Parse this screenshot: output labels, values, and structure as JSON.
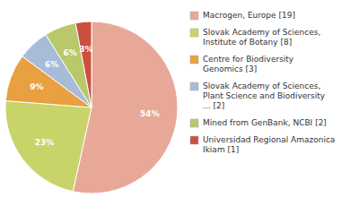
{
  "chart_data": {
    "type": "pie",
    "categories": [
      "Macrogen, Europe [19]",
      "Slovak Academy of Sciences,\nInstitute of Botany [8]",
      "Centre for Biodiversity\nGenomics [3]",
      "Slovak Academy of Sciences,\nPlant Science and Biodiversity\n... [2]",
      "Mined from GenBank, NCBI [2]",
      "Universidad Regional Amazonica\nIkiam [1]"
    ],
    "values": [
      54,
      23,
      9,
      6,
      6,
      3
    ],
    "value_labels": [
      "54%",
      "23%",
      "9%",
      "6%",
      "6%",
      "3%"
    ],
    "colors": [
      "#e8a898",
      "#c8d46a",
      "#e8a040",
      "#a8bcd8",
      "#b8c86a",
      "#cc5040"
    ],
    "data_labels": true,
    "legend": "right"
  }
}
